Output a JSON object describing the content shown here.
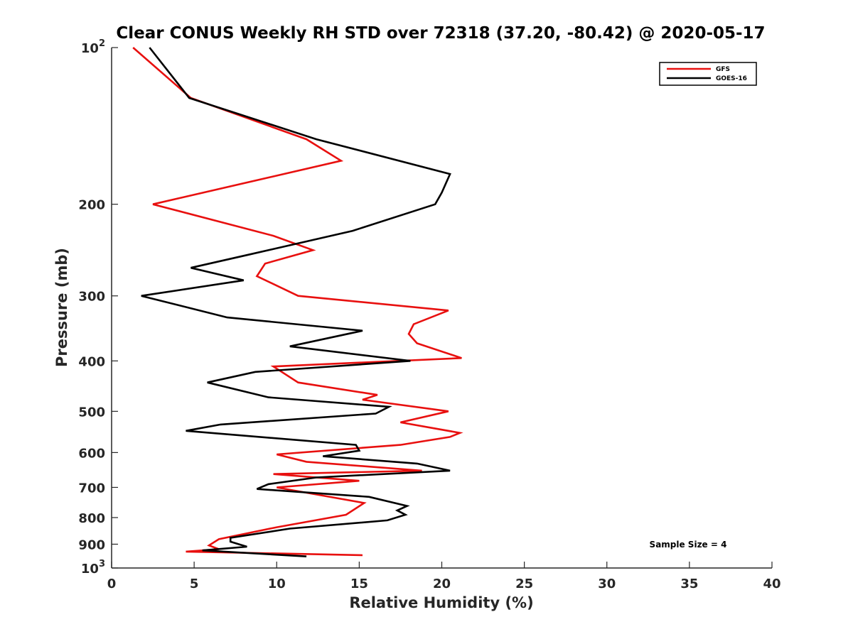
{
  "chart_data": {
    "type": "line",
    "title": "Clear CONUS Weekly RH STD over 72318 (37.20, -80.42) @ 2020-05-17",
    "xlabel": "Relative Humidity (%)",
    "ylabel": "Pressure (mb)",
    "xlim": [
      0,
      40
    ],
    "ylim": [
      100,
      1000
    ],
    "y_scale": "log",
    "y_reversed": true,
    "grid": false,
    "legend_position": "top-right",
    "x_ticks": [
      "0",
      "5",
      "10",
      "15",
      "20",
      "25",
      "30",
      "35",
      "40"
    ],
    "y_ticks": [
      {
        "value": 100,
        "base": "10",
        "exp": "2"
      },
      {
        "value": 200,
        "label": "200"
      },
      {
        "value": 300,
        "label": "300"
      },
      {
        "value": 400,
        "label": "400"
      },
      {
        "value": 500,
        "label": "500"
      },
      {
        "value": 600,
        "label": "600"
      },
      {
        "value": 700,
        "label": "700"
      },
      {
        "value": 800,
        "label": "800"
      },
      {
        "value": 900,
        "label": "900"
      },
      {
        "value": 1000,
        "base": "10",
        "exp": "3"
      }
    ],
    "annotation": "Sample Size = 4",
    "series": [
      {
        "name": "GFS",
        "color": "#e8100f",
        "points": [
          [
            1.3,
            100
          ],
          [
            4.8,
            125
          ],
          [
            11.8,
            150
          ],
          [
            13.9,
            165
          ],
          [
            2.5,
            200
          ],
          [
            9.8,
            230
          ],
          [
            12.2,
            245
          ],
          [
            9.3,
            260
          ],
          [
            8.8,
            275
          ],
          [
            11.3,
            300
          ],
          [
            20.4,
            320
          ],
          [
            18.3,
            340
          ],
          [
            18.0,
            355
          ],
          [
            18.5,
            370
          ],
          [
            21.2,
            395
          ],
          [
            9.8,
            410
          ],
          [
            11.3,
            440
          ],
          [
            16.1,
            465
          ],
          [
            15.2,
            475
          ],
          [
            20.4,
            500
          ],
          [
            17.5,
            525
          ],
          [
            21.1,
            550
          ],
          [
            20.5,
            560
          ],
          [
            17.5,
            580
          ],
          [
            10.0,
            605
          ],
          [
            11.8,
            625
          ],
          [
            18.8,
            650
          ],
          [
            9.8,
            660
          ],
          [
            15.0,
            680
          ],
          [
            10.0,
            700
          ],
          [
            15.3,
            750
          ],
          [
            14.2,
            790
          ],
          [
            10.0,
            835
          ],
          [
            6.5,
            880
          ],
          [
            5.9,
            905
          ],
          [
            6.5,
            920
          ],
          [
            4.5,
            930
          ],
          [
            15.2,
            945
          ]
        ]
      },
      {
        "name": "GOES-16",
        "color": "#000000",
        "points": [
          [
            2.3,
            100
          ],
          [
            4.7,
            125
          ],
          [
            12.4,
            150
          ],
          [
            20.5,
            175
          ],
          [
            20.0,
            190
          ],
          [
            19.6,
            200
          ],
          [
            14.6,
            225
          ],
          [
            8.3,
            250
          ],
          [
            4.8,
            265
          ],
          [
            8.0,
            280
          ],
          [
            1.8,
            300
          ],
          [
            7.0,
            330
          ],
          [
            15.2,
            350
          ],
          [
            10.8,
            375
          ],
          [
            18.1,
            400
          ],
          [
            8.7,
            420
          ],
          [
            5.8,
            440
          ],
          [
            9.5,
            470
          ],
          [
            16.8,
            490
          ],
          [
            16.0,
            505
          ],
          [
            6.6,
            530
          ],
          [
            4.5,
            545
          ],
          [
            14.8,
            580
          ],
          [
            15.0,
            595
          ],
          [
            12.8,
            610
          ],
          [
            18.5,
            630
          ],
          [
            20.5,
            650
          ],
          [
            12.4,
            670
          ],
          [
            9.5,
            690
          ],
          [
            8.8,
            705
          ],
          [
            15.6,
            730
          ],
          [
            17.9,
            760
          ],
          [
            17.3,
            775
          ],
          [
            17.8,
            790
          ],
          [
            16.7,
            810
          ],
          [
            10.8,
            840
          ],
          [
            7.2,
            875
          ],
          [
            7.2,
            890
          ],
          [
            8.2,
            910
          ],
          [
            5.5,
            925
          ],
          [
            11.8,
            950
          ]
        ]
      }
    ]
  }
}
